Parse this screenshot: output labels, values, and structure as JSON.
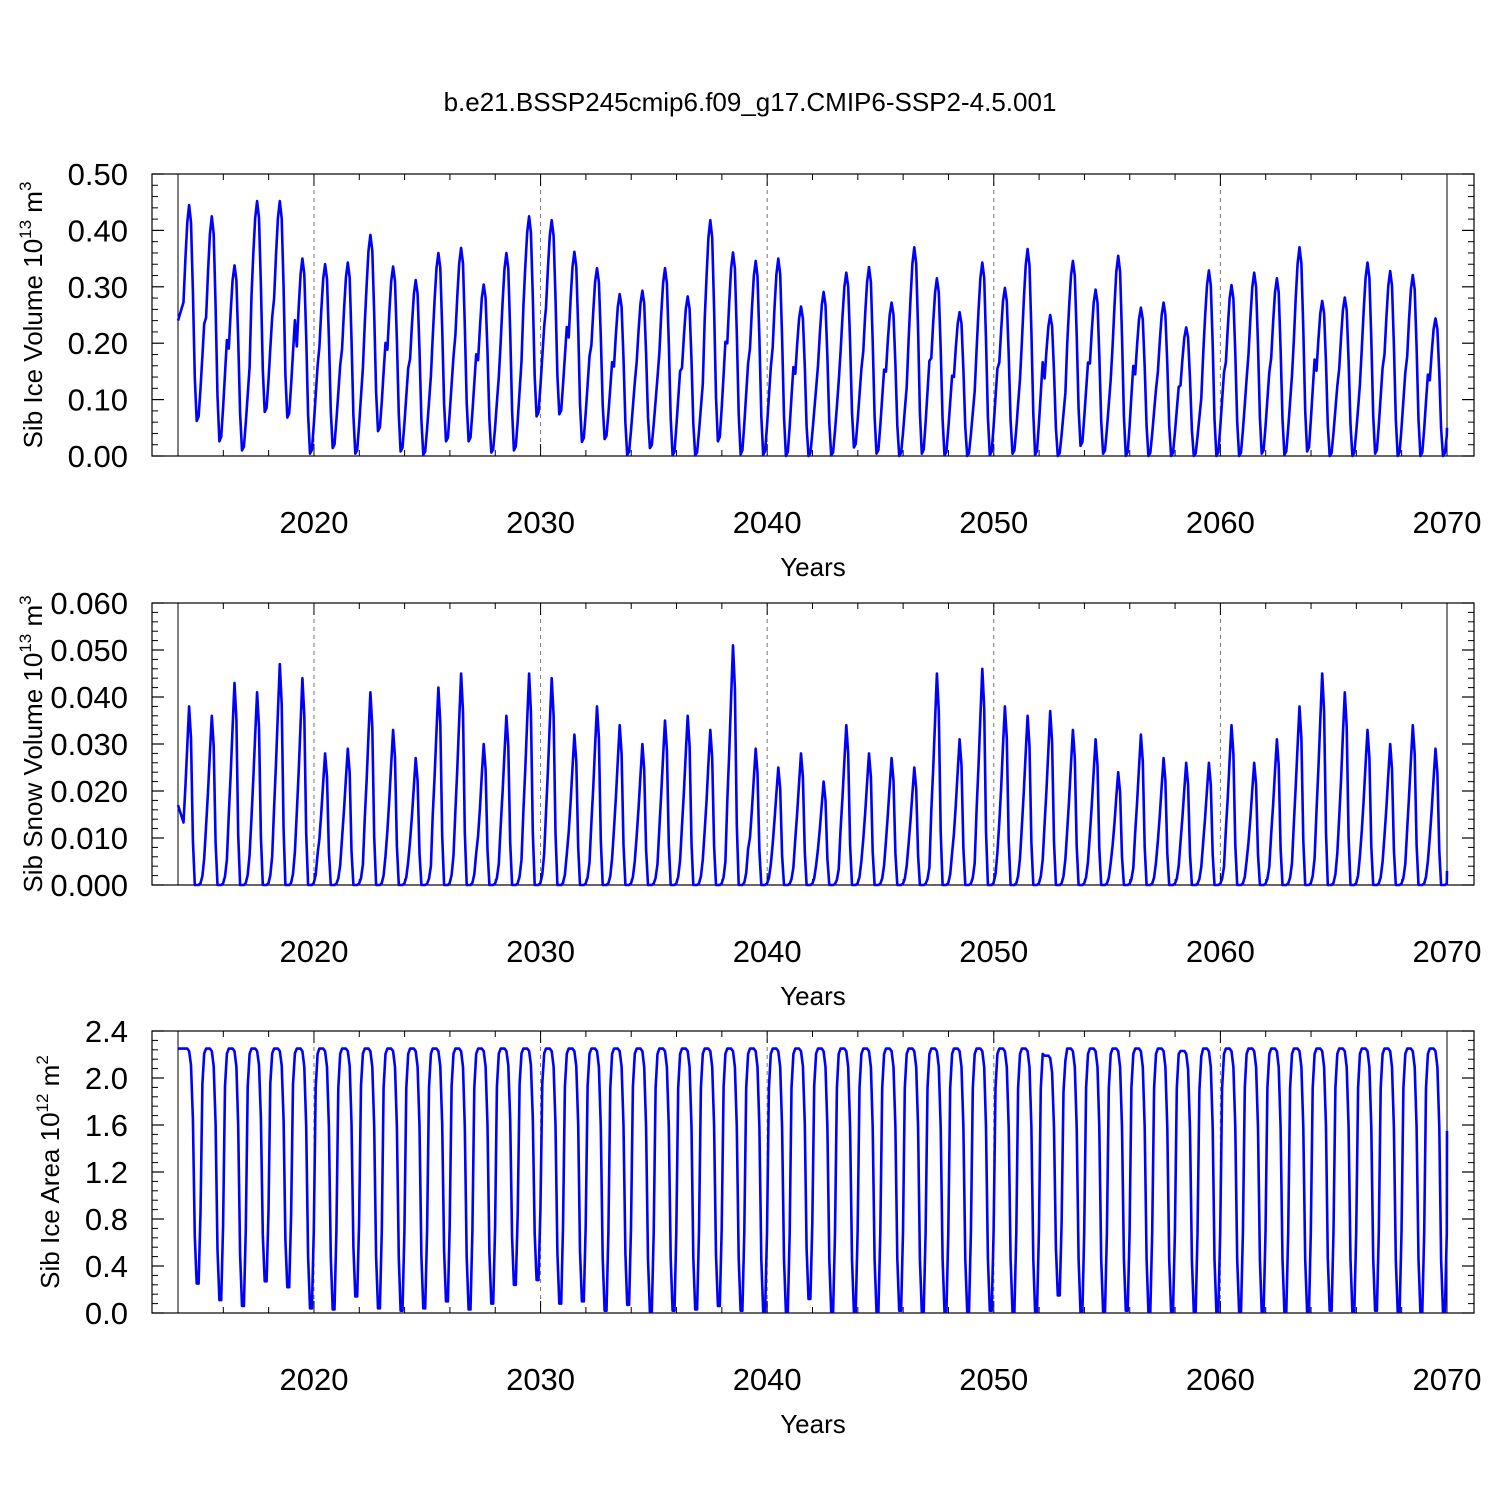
{
  "title": "b.e21.BSSP245cmip6.f09_g17.CMIP6-SSP2-4.5.001",
  "colors": {
    "line": "#0000ff",
    "axis": "#000000",
    "grid": "#777777"
  },
  "chart_data": [
    {
      "type": "line",
      "id": "ice-volume",
      "xlabel": "Years",
      "ylabel": {
        "prefix": "Sib Ice Volume 10",
        "exp": "13",
        "unit": " m",
        "unit_exp": "3"
      },
      "xlim": [
        2014,
        2070
      ],
      "ylim": [
        0,
        0.5
      ],
      "yticks": [
        "0.00",
        "0.10",
        "0.20",
        "0.30",
        "0.40",
        "0.50"
      ],
      "xticks": [
        "2020",
        "2030",
        "2040",
        "2050",
        "2060",
        "2070"
      ],
      "vertical_grid": [
        2020,
        2030,
        2040,
        2050,
        2060
      ],
      "start_value": 0.24,
      "end_value": 0.05,
      "series": [
        {
          "name": "Sib Ice Volume",
          "annual_max": [
            0.445,
            0.425,
            0.338,
            0.452,
            0.452,
            0.35,
            0.34,
            0.343,
            0.392,
            0.336,
            0.312,
            0.36,
            0.369,
            0.304,
            0.36,
            0.425,
            0.418,
            0.362,
            0.333,
            0.287,
            0.293,
            0.333,
            0.283,
            0.418,
            0.361,
            0.346,
            0.35,
            0.265,
            0.291,
            0.325,
            0.335,
            0.272,
            0.37,
            0.315,
            0.255,
            0.343,
            0.298,
            0.367,
            0.25,
            0.346,
            0.295,
            0.355,
            0.263,
            0.272,
            0.228,
            0.329,
            0.303,
            0.325,
            0.315,
            0.37,
            0.275,
            0.281,
            0.343,
            0.328,
            0.321,
            0.244
          ],
          "annual_min": [
            0.062,
            0.026,
            0.01,
            0.078,
            0.068,
            0.004,
            0.014,
            0.004,
            0.044,
            0.008,
            0.002,
            0.026,
            0.026,
            0.006,
            0.01,
            0.07,
            0.074,
            0.025,
            0.03,
            0.002,
            0.014,
            0.001,
            0.001,
            0.026,
            0.003,
            0.002,
            0.0,
            0.0,
            0.001,
            0.015,
            0.004,
            0.0,
            0.004,
            0.001,
            0.0,
            0.001,
            0.004,
            0.002,
            0.0,
            0.018,
            0.004,
            0.0,
            0.0,
            0.0,
            0.0,
            0.0,
            0.0,
            0.004,
            0.002,
            0.008,
            0.0,
            0.0,
            0.004,
            0.0,
            0.0,
            0.0
          ]
        }
      ]
    },
    {
      "type": "line",
      "id": "snow-volume",
      "xlabel": "Years",
      "ylabel": {
        "prefix": "Sib Snow Volume 10",
        "exp": "13",
        "unit": " m",
        "unit_exp": "3"
      },
      "xlim": [
        2014,
        2070
      ],
      "ylim": [
        0,
        0.06
      ],
      "yticks": [
        "0.000",
        "0.010",
        "0.020",
        "0.030",
        "0.040",
        "0.050",
        "0.060"
      ],
      "xticks": [
        "2020",
        "2030",
        "2040",
        "2050",
        "2060",
        "2070"
      ],
      "vertical_grid": [
        2020,
        2030,
        2040,
        2050,
        2060
      ],
      "start_value": 0.017,
      "end_value": 0.003,
      "series": [
        {
          "name": "Sib Snow Volume",
          "annual_max": [
            0.038,
            0.036,
            0.043,
            0.041,
            0.047,
            0.044,
            0.028,
            0.029,
            0.041,
            0.033,
            0.027,
            0.042,
            0.045,
            0.03,
            0.036,
            0.045,
            0.044,
            0.032,
            0.038,
            0.034,
            0.03,
            0.035,
            0.036,
            0.033,
            0.051,
            0.029,
            0.025,
            0.028,
            0.022,
            0.034,
            0.028,
            0.027,
            0.025,
            0.045,
            0.031,
            0.046,
            0.038,
            0.036,
            0.037,
            0.033,
            0.031,
            0.024,
            0.032,
            0.027,
            0.026,
            0.026,
            0.034,
            0.026,
            0.031,
            0.038,
            0.045,
            0.041,
            0.033,
            0.03,
            0.034,
            0.029
          ],
          "annual_min": [
            0.0,
            0.0,
            0.0,
            0.0,
            0.0,
            0.0,
            0.0,
            0.0,
            0.0,
            0.0,
            0.0,
            0.0,
            0.0,
            0.0,
            0.0,
            0.0,
            0.0,
            0.0,
            0.0,
            0.0,
            0.0,
            0.0,
            0.0,
            0.0,
            0.0,
            0.0,
            0.0,
            0.0,
            0.0,
            0.0,
            0.0,
            0.0,
            0.0,
            0.0,
            0.0,
            0.0,
            0.0,
            0.0,
            0.0,
            0.0,
            0.0,
            0.0,
            0.0,
            0.0,
            0.0,
            0.0,
            0.0,
            0.0,
            0.0,
            0.0,
            0.0,
            0.0,
            0.0,
            0.0,
            0.0,
            0.0
          ]
        }
      ]
    },
    {
      "type": "line",
      "id": "ice-area",
      "xlabel": "Years",
      "ylabel": {
        "prefix": "Sib Ice Area 10",
        "exp": "12",
        "unit": " m",
        "unit_exp": "2"
      },
      "xlim": [
        2014,
        2070
      ],
      "ylim": [
        0,
        2.4
      ],
      "yticks": [
        "0.0",
        "0.4",
        "0.8",
        "1.2",
        "1.6",
        "2.0",
        "2.4"
      ],
      "xticks": [
        "2020",
        "2030",
        "2040",
        "2050",
        "2060",
        "2070"
      ],
      "vertical_grid": [
        2020,
        2030,
        2040,
        2050,
        2060
      ],
      "start_value": 2.25,
      "end_value": 1.55,
      "series": [
        {
          "name": "Sib Ice Area",
          "annual_max": [
            2.25,
            2.25,
            2.25,
            2.25,
            2.25,
            2.25,
            2.25,
            2.25,
            2.25,
            2.25,
            2.25,
            2.25,
            2.25,
            2.25,
            2.25,
            2.25,
            2.25,
            2.25,
            2.25,
            2.25,
            2.25,
            2.25,
            2.25,
            2.25,
            2.25,
            2.25,
            2.25,
            2.25,
            2.25,
            2.25,
            2.25,
            2.25,
            2.25,
            2.25,
            2.25,
            2.25,
            2.25,
            2.25,
            2.19,
            2.25,
            2.25,
            2.25,
            2.25,
            2.25,
            2.23,
            2.25,
            2.25,
            2.25,
            2.25,
            2.25,
            2.25,
            2.25,
            2.25,
            2.25,
            2.25,
            2.25
          ],
          "annual_min": [
            0.25,
            0.11,
            0.06,
            0.27,
            0.22,
            0.04,
            0.03,
            0.14,
            0.04,
            0.02,
            0.04,
            0.1,
            0.03,
            0.08,
            0.24,
            0.28,
            0.08,
            0.1,
            0.02,
            0.07,
            0.01,
            0.02,
            0.03,
            0.06,
            0.02,
            0.01,
            0.01,
            0.12,
            0.01,
            0.01,
            0.01,
            0.02,
            0.01,
            0.01,
            0.01,
            0.02,
            0.01,
            0.01,
            0.15,
            0.01,
            0.01,
            0.02,
            0.01,
            0.01,
            0.01,
            0.01,
            0.01,
            0.01,
            0.01,
            0.01,
            0.02,
            0.01,
            0.02,
            0.01,
            0.01,
            0.01
          ]
        }
      ]
    }
  ]
}
